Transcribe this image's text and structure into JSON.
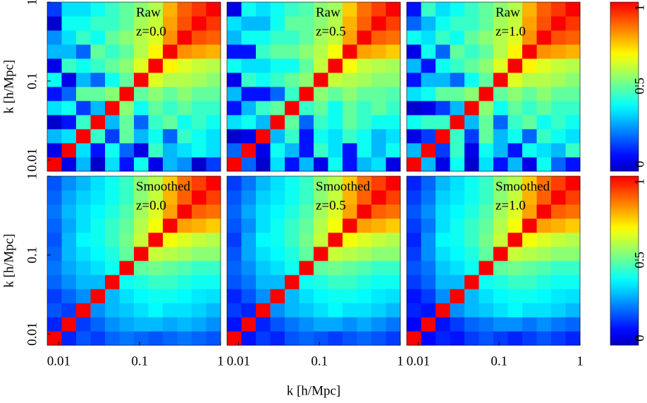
{
  "chart_data": [
    {
      "type": "heatmap",
      "annotations": [
        "Raw",
        "z=0.0"
      ],
      "ylabel": "k [h/Mpc]",
      "xscale": "log",
      "yscale": "log",
      "xlim": [
        0.0072,
        1
      ],
      "ylim": [
        0.0072,
        1
      ],
      "yticks": [
        0.01,
        0.1,
        1
      ],
      "colormap": "jet",
      "zlim": [
        0,
        1
      ],
      "values": [
        [
          1,
          0.05,
          0.3,
          0.02,
          0.35,
          0.1,
          0.4,
          0.05,
          0.3,
          0.25,
          0.02,
          0.15
        ],
        [
          0.05,
          1,
          0.35,
          0.1,
          0.4,
          0.2,
          0.05,
          0.45,
          0.3,
          0.35,
          0.4,
          0.35
        ],
        [
          0.3,
          0.35,
          1,
          0.45,
          0.15,
          0.5,
          0.3,
          0.4,
          0.2,
          0.45,
          0.4,
          0.35
        ],
        [
          0.02,
          0.1,
          0.45,
          1,
          0.3,
          0.5,
          0.2,
          0.45,
          0.5,
          0.4,
          0.45,
          0.4
        ],
        [
          0.35,
          0.4,
          0.15,
          0.3,
          1,
          0.55,
          0.4,
          0.5,
          0.45,
          0.5,
          0.45,
          0.45
        ],
        [
          0.1,
          0.2,
          0.5,
          0.5,
          0.55,
          1,
          0.5,
          0.55,
          0.5,
          0.55,
          0.5,
          0.5
        ],
        [
          0.4,
          0.05,
          0.3,
          0.2,
          0.4,
          0.5,
          1,
          0.65,
          0.6,
          0.6,
          0.58,
          0.55
        ],
        [
          0.05,
          0.45,
          0.4,
          0.45,
          0.5,
          0.55,
          0.65,
          1,
          0.7,
          0.65,
          0.62,
          0.6
        ],
        [
          0.3,
          0.3,
          0.2,
          0.5,
          0.45,
          0.5,
          0.6,
          0.7,
          1,
          0.82,
          0.8,
          0.78
        ],
        [
          0.25,
          0.35,
          0.45,
          0.4,
          0.5,
          0.55,
          0.6,
          0.65,
          0.82,
          1,
          0.9,
          0.88
        ],
        [
          0.02,
          0.4,
          0.4,
          0.45,
          0.45,
          0.5,
          0.58,
          0.62,
          0.8,
          0.9,
          1,
          0.93
        ],
        [
          0.15,
          0.35,
          0.35,
          0.4,
          0.45,
          0.5,
          0.55,
          0.6,
          0.78,
          0.88,
          0.93,
          1
        ]
      ]
    },
    {
      "type": "heatmap",
      "annotations": [
        "Raw",
        "z=0.5"
      ],
      "xscale": "log",
      "yscale": "log",
      "xlim": [
        0.0072,
        1
      ],
      "ylim": [
        0.0072,
        1
      ],
      "colormap": "jet",
      "zlim": [
        0,
        1
      ],
      "values": [
        [
          1,
          0.2,
          0.02,
          0.35,
          0.1,
          0.3,
          0.05,
          0.4,
          0.1,
          0.3,
          0.35,
          0.05
        ],
        [
          0.2,
          1,
          0.05,
          0.4,
          0.3,
          0.1,
          0.45,
          0.35,
          0.1,
          0.4,
          0.3,
          0.4
        ],
        [
          0.02,
          0.05,
          1,
          0.3,
          0.45,
          0.1,
          0.4,
          0.35,
          0.45,
          0.4,
          0.3,
          0.35
        ],
        [
          0.35,
          0.4,
          0.3,
          1,
          0.5,
          0.2,
          0.45,
          0.4,
          0.5,
          0.45,
          0.4,
          0.4
        ],
        [
          0.1,
          0.3,
          0.45,
          0.5,
          1,
          0.45,
          0.5,
          0.4,
          0.5,
          0.45,
          0.5,
          0.45
        ],
        [
          0.3,
          0.1,
          0.1,
          0.2,
          0.45,
          1,
          0.55,
          0.5,
          0.55,
          0.5,
          0.5,
          0.48
        ],
        [
          0.05,
          0.45,
          0.4,
          0.45,
          0.5,
          0.55,
          1,
          0.62,
          0.6,
          0.58,
          0.55,
          0.55
        ],
        [
          0.4,
          0.35,
          0.35,
          0.4,
          0.4,
          0.5,
          0.62,
          1,
          0.68,
          0.62,
          0.6,
          0.58
        ],
        [
          0.1,
          0.1,
          0.45,
          0.5,
          0.5,
          0.55,
          0.6,
          0.68,
          1,
          0.8,
          0.78,
          0.75
        ],
        [
          0.3,
          0.4,
          0.4,
          0.45,
          0.45,
          0.5,
          0.58,
          0.62,
          0.8,
          1,
          0.88,
          0.86
        ],
        [
          0.35,
          0.3,
          0.3,
          0.4,
          0.5,
          0.5,
          0.55,
          0.6,
          0.78,
          0.88,
          1,
          0.92
        ],
        [
          0.05,
          0.4,
          0.35,
          0.4,
          0.45,
          0.48,
          0.55,
          0.58,
          0.75,
          0.86,
          0.92,
          1
        ]
      ]
    },
    {
      "type": "heatmap",
      "annotations": [
        "Raw",
        "z=1.0"
      ],
      "xscale": "log",
      "yscale": "log",
      "xlim": [
        0.0072,
        1
      ],
      "ylim": [
        0.0072,
        1
      ],
      "colormap": "jet",
      "zlim": [
        0,
        1
      ],
      "colorbar_ticks": [
        0,
        0.5,
        1
      ],
      "values": [
        [
          1,
          0.3,
          0.05,
          0.4,
          0.02,
          0.35,
          0.1,
          0.3,
          0.05,
          0.4,
          0.2,
          0.1
        ],
        [
          0.3,
          1,
          0.15,
          0.45,
          0.05,
          0.4,
          0.3,
          0.1,
          0.4,
          0.35,
          0.3,
          0.45
        ],
        [
          0.05,
          0.15,
          1,
          0.45,
          0.15,
          0.5,
          0.3,
          0.4,
          0.2,
          0.45,
          0.4,
          0.35
        ],
        [
          0.4,
          0.45,
          0.45,
          1,
          0.3,
          0.5,
          0.2,
          0.45,
          0.5,
          0.4,
          0.45,
          0.4
        ],
        [
          0.02,
          0.05,
          0.15,
          0.3,
          1,
          0.55,
          0.4,
          0.5,
          0.45,
          0.5,
          0.45,
          0.45
        ],
        [
          0.35,
          0.4,
          0.5,
          0.5,
          0.55,
          1,
          0.5,
          0.55,
          0.5,
          0.55,
          0.5,
          0.5
        ],
        [
          0.1,
          0.3,
          0.3,
          0.2,
          0.4,
          0.5,
          1,
          0.65,
          0.6,
          0.6,
          0.58,
          0.55
        ],
        [
          0.3,
          0.1,
          0.4,
          0.45,
          0.5,
          0.55,
          0.65,
          1,
          0.7,
          0.65,
          0.62,
          0.6
        ],
        [
          0.05,
          0.4,
          0.2,
          0.5,
          0.45,
          0.5,
          0.6,
          0.7,
          1,
          0.82,
          0.8,
          0.78
        ],
        [
          0.4,
          0.35,
          0.45,
          0.4,
          0.5,
          0.55,
          0.6,
          0.65,
          0.82,
          1,
          0.9,
          0.88
        ],
        [
          0.2,
          0.3,
          0.4,
          0.45,
          0.45,
          0.5,
          0.58,
          0.62,
          0.8,
          0.9,
          1,
          0.93
        ],
        [
          0.1,
          0.45,
          0.35,
          0.4,
          0.45,
          0.5,
          0.55,
          0.6,
          0.78,
          0.88,
          0.93,
          1
        ]
      ]
    },
    {
      "type": "heatmap",
      "annotations": [
        "Smoothed",
        "z=0.0"
      ],
      "ylabel": "k [h/Mpc]",
      "xscale": "log",
      "yscale": "log",
      "xlim": [
        0.0072,
        1
      ],
      "ylim": [
        0.0072,
        1
      ],
      "xticks": [
        0.01,
        0.1,
        1
      ],
      "yticks": [
        0.01,
        0.1,
        1
      ],
      "colormap": "jet",
      "zlim": [
        0,
        1
      ],
      "values": [
        [
          1,
          0.12,
          0.18,
          0.15,
          0.2,
          0.22,
          0.2,
          0.18,
          0.2,
          0.22,
          0.2,
          0.18
        ],
        [
          0.12,
          1,
          0.15,
          0.2,
          0.25,
          0.28,
          0.3,
          0.3,
          0.28,
          0.3,
          0.28,
          0.25
        ],
        [
          0.18,
          0.15,
          1,
          0.25,
          0.3,
          0.32,
          0.35,
          0.38,
          0.35,
          0.35,
          0.33,
          0.3
        ],
        [
          0.15,
          0.2,
          0.25,
          1,
          0.3,
          0.35,
          0.38,
          0.4,
          0.4,
          0.38,
          0.36,
          0.35
        ],
        [
          0.2,
          0.25,
          0.3,
          0.3,
          1,
          0.4,
          0.42,
          0.45,
          0.45,
          0.42,
          0.4,
          0.4
        ],
        [
          0.22,
          0.28,
          0.32,
          0.35,
          0.4,
          1,
          0.5,
          0.52,
          0.5,
          0.48,
          0.45,
          0.45
        ],
        [
          0.2,
          0.3,
          0.35,
          0.38,
          0.42,
          0.5,
          1,
          0.62,
          0.6,
          0.58,
          0.55,
          0.55
        ],
        [
          0.18,
          0.3,
          0.38,
          0.4,
          0.45,
          0.52,
          0.62,
          1,
          0.68,
          0.65,
          0.62,
          0.6
        ],
        [
          0.2,
          0.28,
          0.35,
          0.4,
          0.45,
          0.5,
          0.6,
          0.68,
          1,
          0.8,
          0.78,
          0.75
        ],
        [
          0.22,
          0.3,
          0.35,
          0.38,
          0.42,
          0.48,
          0.58,
          0.65,
          0.8,
          1,
          0.88,
          0.86
        ],
        [
          0.2,
          0.28,
          0.33,
          0.36,
          0.4,
          0.45,
          0.55,
          0.62,
          0.78,
          0.88,
          1,
          0.92
        ],
        [
          0.18,
          0.25,
          0.3,
          0.35,
          0.4,
          0.45,
          0.55,
          0.6,
          0.75,
          0.86,
          0.92,
          1
        ]
      ]
    },
    {
      "type": "heatmap",
      "annotations": [
        "Smoothed",
        "z=0.5"
      ],
      "xlabel": "k [h/Mpc]",
      "xscale": "log",
      "yscale": "log",
      "xlim": [
        0.0072,
        1
      ],
      "ylim": [
        0.0072,
        1
      ],
      "xticks": [
        0.01,
        0.1,
        1
      ],
      "colormap": "jet",
      "zlim": [
        0,
        1
      ],
      "values": [
        [
          1,
          0.1,
          0.15,
          0.12,
          0.18,
          0.2,
          0.18,
          0.15,
          0.18,
          0.2,
          0.18,
          0.15
        ],
        [
          0.1,
          1,
          0.12,
          0.18,
          0.22,
          0.25,
          0.28,
          0.28,
          0.25,
          0.28,
          0.25,
          0.22
        ],
        [
          0.15,
          0.12,
          1,
          0.25,
          0.3,
          0.32,
          0.35,
          0.38,
          0.35,
          0.35,
          0.33,
          0.3
        ],
        [
          0.12,
          0.18,
          0.25,
          1,
          0.3,
          0.35,
          0.38,
          0.4,
          0.4,
          0.38,
          0.36,
          0.35
        ],
        [
          0.18,
          0.22,
          0.3,
          0.3,
          1,
          0.4,
          0.42,
          0.45,
          0.45,
          0.42,
          0.4,
          0.4
        ],
        [
          0.2,
          0.25,
          0.32,
          0.35,
          0.4,
          1,
          0.5,
          0.52,
          0.5,
          0.48,
          0.45,
          0.45
        ],
        [
          0.18,
          0.28,
          0.35,
          0.38,
          0.42,
          0.5,
          1,
          0.62,
          0.6,
          0.58,
          0.55,
          0.55
        ],
        [
          0.15,
          0.28,
          0.38,
          0.4,
          0.45,
          0.52,
          0.62,
          1,
          0.68,
          0.65,
          0.62,
          0.6
        ],
        [
          0.18,
          0.25,
          0.35,
          0.4,
          0.45,
          0.5,
          0.6,
          0.68,
          1,
          0.8,
          0.78,
          0.75
        ],
        [
          0.2,
          0.28,
          0.35,
          0.38,
          0.42,
          0.48,
          0.58,
          0.65,
          0.8,
          1,
          0.88,
          0.86
        ],
        [
          0.18,
          0.25,
          0.33,
          0.36,
          0.4,
          0.45,
          0.55,
          0.62,
          0.78,
          0.88,
          1,
          0.92
        ],
        [
          0.15,
          0.22,
          0.3,
          0.35,
          0.4,
          0.45,
          0.55,
          0.6,
          0.75,
          0.86,
          0.92,
          1
        ]
      ]
    },
    {
      "type": "heatmap",
      "annotations": [
        "Smoothed",
        "z=1.0"
      ],
      "xscale": "log",
      "yscale": "log",
      "xlim": [
        0.0072,
        1
      ],
      "ylim": [
        0.0072,
        1
      ],
      "xticks": [
        0.01,
        0.1,
        1
      ],
      "colormap": "jet",
      "zlim": [
        0,
        1
      ],
      "colorbar_ticks": [
        0,
        0.5,
        1
      ],
      "values": [
        [
          1,
          0.08,
          0.12,
          0.1,
          0.15,
          0.18,
          0.15,
          0.12,
          0.15,
          0.18,
          0.15,
          0.12
        ],
        [
          0.08,
          1,
          0.1,
          0.15,
          0.2,
          0.22,
          0.25,
          0.25,
          0.22,
          0.25,
          0.22,
          0.2
        ],
        [
          0.12,
          0.1,
          1,
          0.25,
          0.3,
          0.32,
          0.35,
          0.38,
          0.35,
          0.35,
          0.33,
          0.3
        ],
        [
          0.1,
          0.15,
          0.25,
          1,
          0.3,
          0.35,
          0.38,
          0.4,
          0.4,
          0.38,
          0.36,
          0.35
        ],
        [
          0.15,
          0.2,
          0.3,
          0.3,
          1,
          0.4,
          0.42,
          0.45,
          0.45,
          0.42,
          0.4,
          0.4
        ],
        [
          0.18,
          0.22,
          0.32,
          0.35,
          0.4,
          1,
          0.5,
          0.52,
          0.5,
          0.48,
          0.45,
          0.45
        ],
        [
          0.15,
          0.25,
          0.35,
          0.38,
          0.42,
          0.5,
          1,
          0.62,
          0.6,
          0.58,
          0.55,
          0.55
        ],
        [
          0.12,
          0.25,
          0.38,
          0.4,
          0.45,
          0.52,
          0.62,
          1,
          0.68,
          0.65,
          0.62,
          0.6
        ],
        [
          0.15,
          0.22,
          0.35,
          0.4,
          0.45,
          0.5,
          0.6,
          0.68,
          1,
          0.8,
          0.78,
          0.75
        ],
        [
          0.18,
          0.25,
          0.35,
          0.38,
          0.42,
          0.48,
          0.58,
          0.65,
          0.8,
          1,
          0.88,
          0.86
        ],
        [
          0.15,
          0.22,
          0.33,
          0.36,
          0.4,
          0.45,
          0.55,
          0.62,
          0.78,
          0.88,
          1,
          0.92
        ],
        [
          0.12,
          0.2,
          0.3,
          0.35,
          0.4,
          0.45,
          0.55,
          0.6,
          0.75,
          0.86,
          0.92,
          1
        ]
      ]
    }
  ]
}
